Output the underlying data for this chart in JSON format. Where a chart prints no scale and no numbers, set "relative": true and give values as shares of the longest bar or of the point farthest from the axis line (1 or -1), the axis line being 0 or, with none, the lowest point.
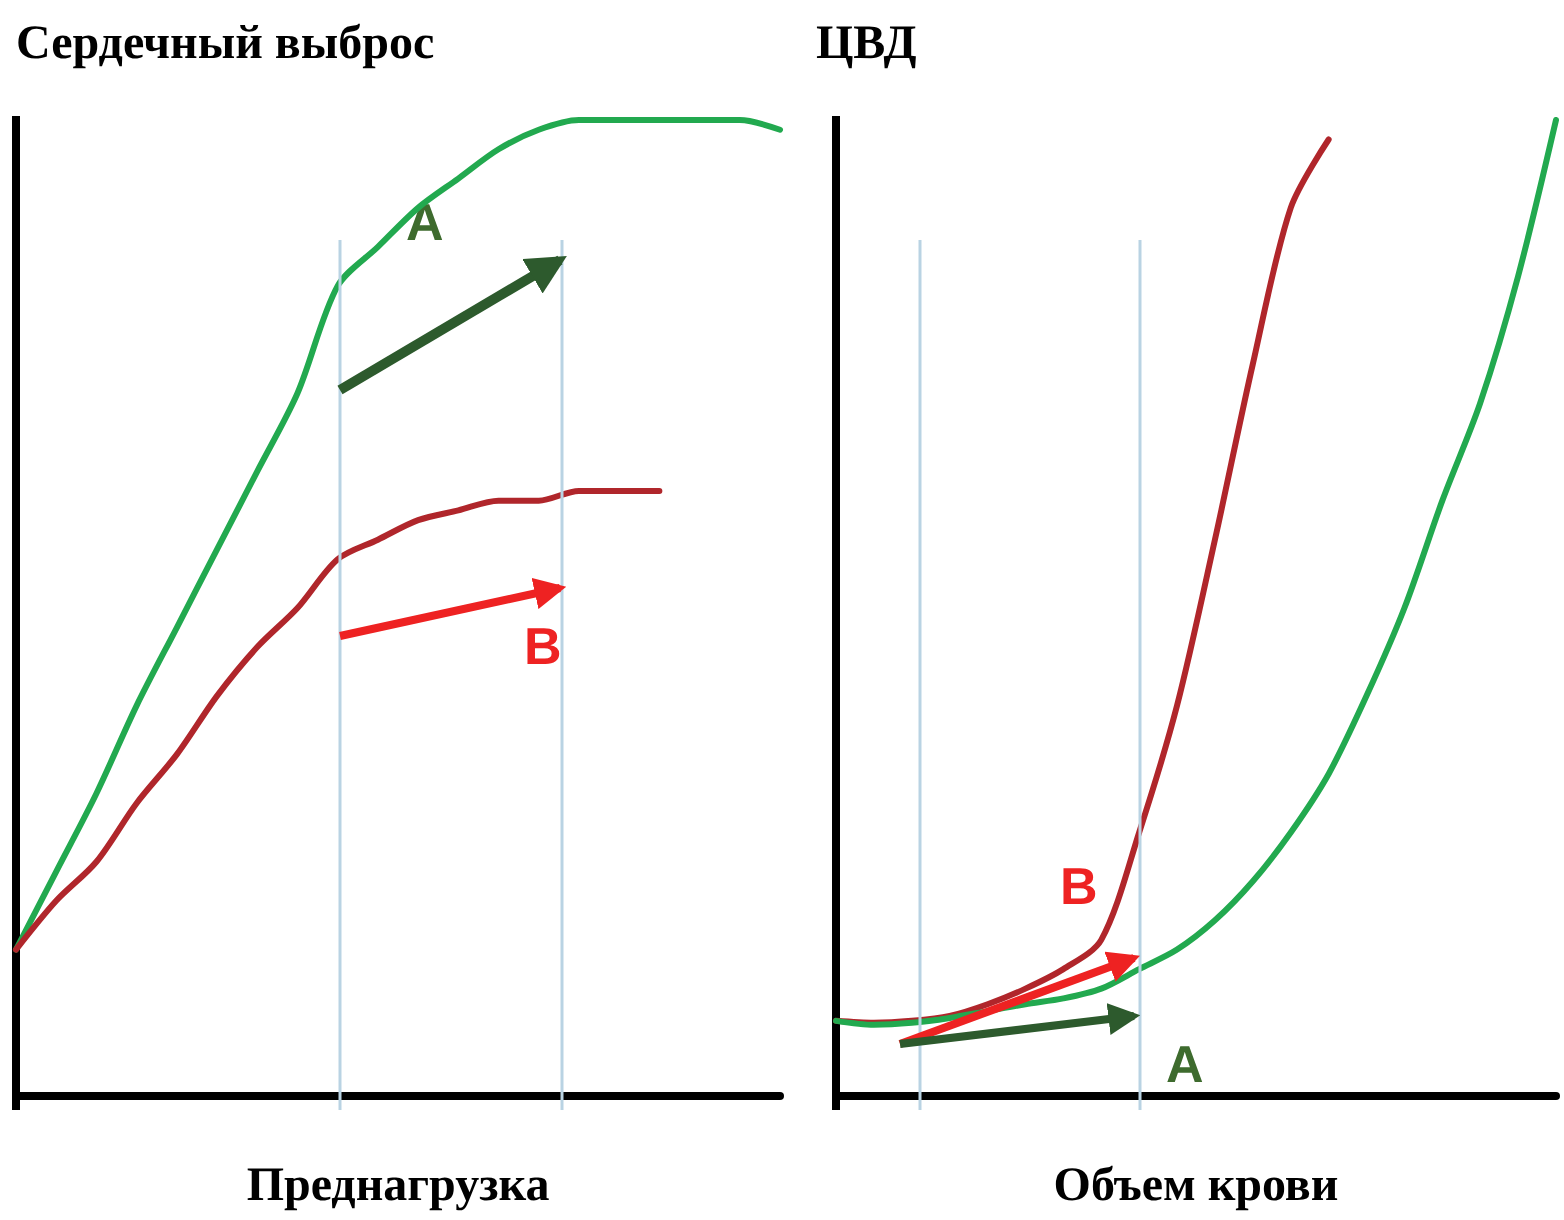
{
  "chart_data": [
    {
      "type": "line",
      "relative": true,
      "ylabel": "Сердечный выброс",
      "xlabel": "Преднагрузка",
      "grid": false,
      "marker": "none",
      "line_style": "solid",
      "categories": [
        null,
        null,
        null,
        null,
        null,
        null,
        null,
        null,
        null,
        null,
        null,
        null,
        null,
        null,
        null,
        null,
        null,
        null,
        null,
        null
      ],
      "series": [
        {
          "color": "#22a94f",
          "values": [
            0.15,
            0.23,
            0.31,
            0.4,
            0.48,
            0.56,
            0.64,
            0.72,
            0.83,
            0.87,
            0.91,
            0.94,
            0.97,
            0.99,
            1.0,
            1.0,
            1.0,
            1.0,
            1.0,
            0.99
          ]
        },
        {
          "color": "#b0262b",
          "values": [
            0.15,
            0.2,
            0.24,
            0.3,
            0.35,
            0.41,
            0.46,
            0.5,
            0.55,
            0.57,
            0.59,
            0.6,
            0.61,
            0.61,
            0.62,
            0.62,
            0.62,
            null,
            null,
            null
          ]
        }
      ],
      "annotations": [
        "A",
        "B"
      ]
    },
    {
      "type": "line",
      "relative": true,
      "ylabel": "ЦВД",
      "xlabel": "Объем крови",
      "grid": false,
      "marker": "none",
      "line_style": "solid",
      "categories": [
        null,
        null,
        null,
        null,
        null,
        null,
        null,
        null,
        null,
        null,
        null,
        null,
        null,
        null,
        null,
        null,
        null,
        null,
        null,
        null
      ],
      "series": [
        {
          "color": "#b0262b",
          "values": [
            0.077,
            0.075,
            0.077,
            0.082,
            0.094,
            0.11,
            0.13,
            0.16,
            0.27,
            0.4,
            0.57,
            0.75,
            0.91,
            0.98,
            null,
            null,
            null,
            null,
            null,
            null
          ]
        },
        {
          "color": "#22a94f",
          "values": [
            0.077,
            0.073,
            0.075,
            0.08,
            0.087,
            0.094,
            0.1,
            0.11,
            0.13,
            0.15,
            0.18,
            0.22,
            0.27,
            0.33,
            0.41,
            0.5,
            0.61,
            0.71,
            0.84,
            1.0
          ]
        }
      ],
      "annotations": [
        "B",
        "A"
      ]
    }
  ]
}
